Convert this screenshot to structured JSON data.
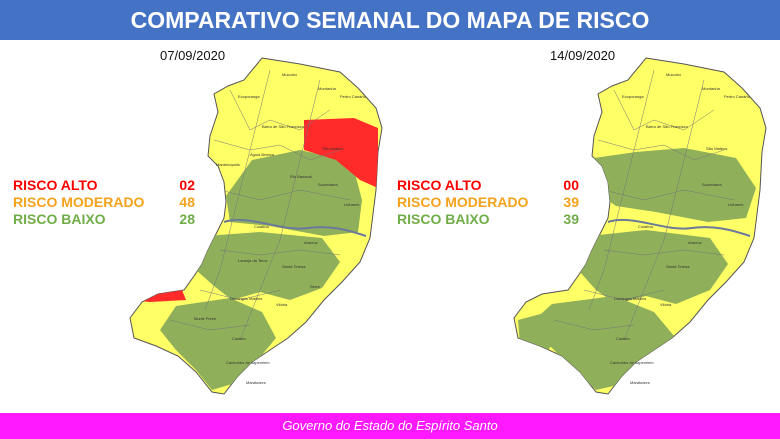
{
  "title": "COMPARATIVO SEMANAL DO MAPA DE RISCO",
  "colors": {
    "header_bg": "#4472c4",
    "footer_bg": "#ff19ff",
    "risk_high": "#ff2a2a",
    "risk_moderate": "#ffff66",
    "risk_low": "#8faf5a"
  },
  "maps": [
    {
      "date": "07/09/2020",
      "legend": [
        {
          "label": "RISCO ALTO",
          "value": "02",
          "color": "#ff0000"
        },
        {
          "label": "RISCO MODERADO",
          "value": "48",
          "color": "#f5a21b"
        },
        {
          "label": "RISCO BAIXO",
          "value": "28",
          "color": "#70ad47"
        }
      ]
    },
    {
      "date": "14/09/2020",
      "legend": [
        {
          "label": "RISCO ALTO",
          "value": "00",
          "color": "#ff0000"
        },
        {
          "label": "RISCO MODERADO",
          "value": "39",
          "color": "#f5a21b"
        },
        {
          "label": "RISCO BAIXO",
          "value": "39",
          "color": "#70ad47"
        }
      ]
    }
  ],
  "footer": "Governo do Estado do Espírito Santo"
}
